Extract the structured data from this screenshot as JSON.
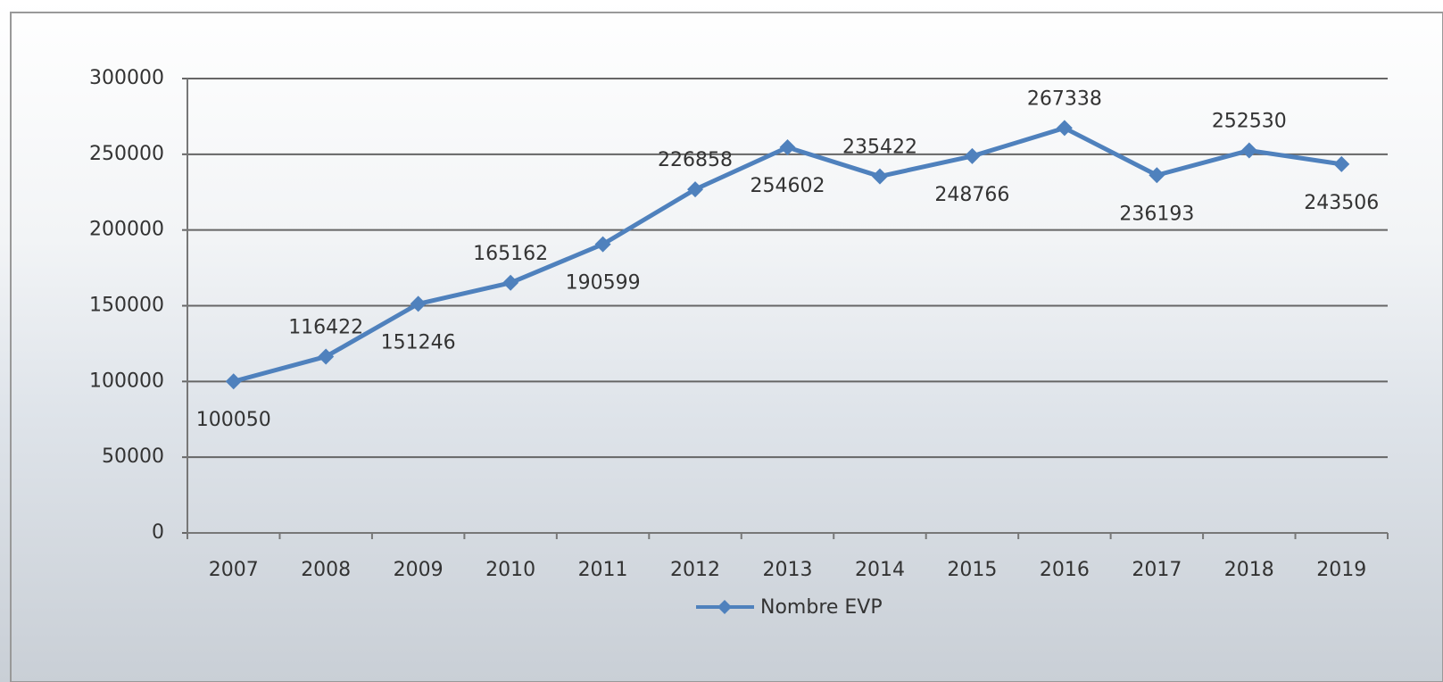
{
  "chart_data": {
    "type": "line",
    "categories": [
      "2007",
      "2008",
      "2009",
      "2010",
      "2011",
      "2012",
      "2013",
      "2014",
      "2015",
      "2016",
      "2017",
      "2018",
      "2019"
    ],
    "series": [
      {
        "name": "Nombre EVP",
        "color": "#4f81bd",
        "values": [
          100050,
          116422,
          151246,
          165162,
          190599,
          226858,
          254602,
          235422,
          248766,
          267338,
          236193,
          252530,
          243506
        ]
      }
    ],
    "ylim": [
      0,
      300000
    ],
    "yticks": [
      0,
      50000,
      100000,
      150000,
      200000,
      250000,
      300000
    ],
    "grid": true
  }
}
